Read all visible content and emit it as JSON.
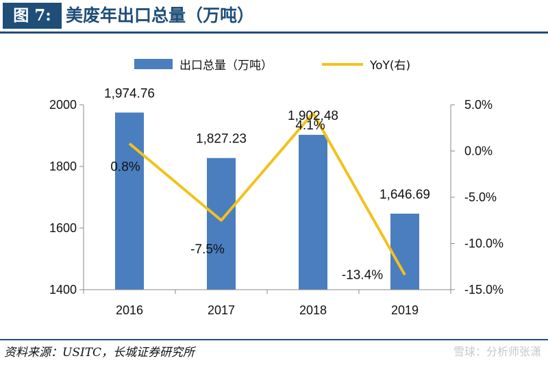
{
  "header": {
    "figure_label": "图 7:",
    "title": "美废年出口总量（万吨）"
  },
  "footer": {
    "source": "资料来源：USITC，长城证券研究所",
    "watermark": "雪球：分析师张潇"
  },
  "colors": {
    "bar": "#4a7ebf",
    "line": "#f2c21b",
    "header_blue": "#1f4e79"
  },
  "chart_data": {
    "type": "bar",
    "categories": [
      "2016",
      "2017",
      "2018",
      "2019"
    ],
    "series": [
      {
        "name": "出口总量（万吨）",
        "type": "bar",
        "axis": "left",
        "values": [
          1974.76,
          1827.23,
          1902.48,
          1646.69
        ],
        "labels": [
          "1,974.76",
          "1,827.23",
          "1,902.48",
          "1,646.69"
        ]
      },
      {
        "name": "YoY(右)",
        "type": "line",
        "axis": "right",
        "values": [
          0.8,
          -7.5,
          4.1,
          -13.4
        ],
        "labels": [
          "0.8%",
          "-7.5%",
          "4.1%",
          "-13.4%"
        ]
      }
    ],
    "y_left": {
      "ylim": [
        1400,
        2000
      ],
      "ticks": [
        1400,
        1600,
        1800,
        2000
      ],
      "tick_labels": [
        "1400",
        "1600",
        "1800",
        "2000"
      ]
    },
    "y_right": {
      "ylim": [
        -15,
        5
      ],
      "ticks": [
        -15,
        -10,
        -5,
        0,
        5
      ],
      "tick_labels": [
        "-15.0%",
        "-10.0%",
        "-5.0%",
        "0.0%",
        "5.0%"
      ]
    },
    "legend": "top-center",
    "grid": false
  }
}
